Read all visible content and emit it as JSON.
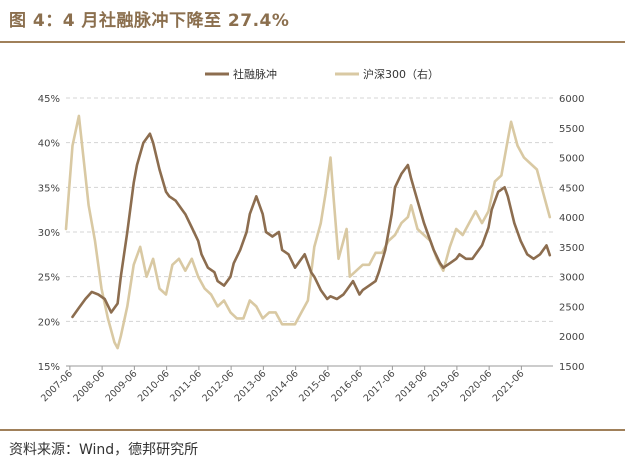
{
  "title": "图 4：4 月社融脉冲下降至 27.4%",
  "source": "资料来源：Wind，德邦研究所",
  "colors": {
    "accent": "#8B6F4E",
    "series1": "#8C6D4F",
    "series2": "#D9C9A3",
    "grid": "#d4d4d4"
  },
  "chart_data": {
    "type": "line",
    "title": "",
    "legend": {
      "placement": "top-center",
      "entries": [
        "社融脉冲",
        "沪深300（右）"
      ]
    },
    "grid": "horizontal dashed",
    "x_tick_labels": [
      "2007-06",
      "2008-06",
      "2009-06",
      "2010-06",
      "2011-06",
      "2012-06",
      "2013-06",
      "2014-06",
      "2015-06",
      "2016-06",
      "2017-06",
      "2018-06",
      "2019-06",
      "2020-06",
      "2021-06"
    ],
    "y_left": {
      "range": [
        15,
        45
      ],
      "ticks": [
        "15%",
        "20%",
        "25%",
        "30%",
        "35%",
        "40%",
        "45%"
      ]
    },
    "y_right": {
      "range": [
        1500,
        6000
      ],
      "ticks": [
        "1500",
        "2000",
        "2500",
        "3000",
        "3500",
        "4000",
        "4500",
        "5000",
        "5500",
        "6000"
      ]
    },
    "series": [
      {
        "name": "社融脉冲",
        "axis": "left",
        "x": [
          2007.5,
          2007.7,
          2007.9,
          2008.1,
          2008.3,
          2008.5,
          2008.7,
          2008.9,
          2009.0,
          2009.2,
          2009.4,
          2009.5,
          2009.7,
          2009.9,
          2010.0,
          2010.2,
          2010.4,
          2010.5,
          2010.7,
          2010.9,
          2011.0,
          2011.2,
          2011.4,
          2011.5,
          2011.7,
          2011.9,
          2012.0,
          2012.2,
          2012.4,
          2012.5,
          2012.7,
          2012.9,
          2013.0,
          2013.2,
          2013.4,
          2013.5,
          2013.7,
          2013.9,
          2014.0,
          2014.2,
          2014.4,
          2014.5,
          2014.7,
          2014.9,
          2015.0,
          2015.2,
          2015.4,
          2015.5,
          2015.7,
          2015.9,
          2016.0,
          2016.2,
          2016.4,
          2016.5,
          2016.7,
          2016.9,
          2017.0,
          2017.2,
          2017.4,
          2017.5,
          2017.7,
          2017.9,
          2018.0,
          2018.2,
          2018.4,
          2018.5,
          2018.7,
          2018.9,
          2019.0,
          2019.2,
          2019.4,
          2019.5,
          2019.7,
          2019.9,
          2020.0,
          2020.2,
          2020.4,
          2020.5,
          2020.7,
          2020.9,
          2021.0,
          2021.2,
          2021.4,
          2021.6,
          2021.8,
          2022.0,
          2022.2,
          2022.3
        ],
        "values": [
          20.5,
          21.5,
          22.5,
          23.3,
          23.0,
          22.5,
          21.0,
          22.0,
          25.0,
          30.0,
          35.5,
          37.5,
          40.0,
          41.0,
          40.0,
          37.0,
          34.5,
          34.0,
          33.5,
          32.5,
          32.0,
          30.5,
          29.0,
          27.5,
          26.0,
          25.5,
          24.5,
          24.0,
          25.0,
          26.5,
          28.0,
          30.0,
          32.0,
          34.0,
          32.0,
          30.0,
          29.5,
          30.0,
          28.0,
          27.5,
          26.0,
          26.5,
          27.5,
          25.5,
          25.0,
          23.5,
          22.5,
          22.8,
          22.5,
          23.0,
          23.5,
          24.5,
          23.0,
          23.5,
          24.0,
          24.5,
          25.5,
          28.0,
          32.0,
          35.0,
          36.5,
          37.5,
          36.0,
          33.5,
          31.0,
          30.0,
          28.0,
          26.5,
          26.0,
          26.5,
          27.0,
          27.5,
          27.0,
          27.0,
          27.5,
          28.5,
          30.5,
          32.5,
          34.5,
          35.0,
          34.0,
          31.0,
          29.0,
          27.5,
          27.0,
          27.5,
          28.5,
          27.4
        ]
      },
      {
        "name": "沪深300（右）",
        "axis": "right",
        "x": [
          2007.3,
          2007.5,
          2007.7,
          2007.9,
          2008.0,
          2008.2,
          2008.4,
          2008.6,
          2008.8,
          2008.9,
          2009.0,
          2009.2,
          2009.4,
          2009.6,
          2009.8,
          2010.0,
          2010.2,
          2010.4,
          2010.6,
          2010.8,
          2011.0,
          2011.2,
          2011.4,
          2011.6,
          2011.8,
          2012.0,
          2012.2,
          2012.4,
          2012.6,
          2012.8,
          2013.0,
          2013.2,
          2013.4,
          2013.6,
          2013.8,
          2014.0,
          2014.2,
          2014.4,
          2014.6,
          2014.8,
          2015.0,
          2015.2,
          2015.35,
          2015.5,
          2015.6,
          2015.75,
          2015.9,
          2016.0,
          2016.1,
          2016.3,
          2016.5,
          2016.7,
          2016.9,
          2017.1,
          2017.3,
          2017.5,
          2017.7,
          2017.9,
          2018.0,
          2018.2,
          2018.4,
          2018.6,
          2018.8,
          2019.0,
          2019.2,
          2019.4,
          2019.6,
          2019.8,
          2020.0,
          2020.2,
          2020.4,
          2020.6,
          2020.8,
          2021.0,
          2021.1,
          2021.3,
          2021.5,
          2021.7,
          2021.9,
          2022.1,
          2022.3
        ],
        "values": [
          3800,
          5200,
          5700,
          4700,
          4200,
          3600,
          2800,
          2300,
          1900,
          1800,
          2000,
          2500,
          3200,
          3500,
          3000,
          3300,
          2800,
          2700,
          3200,
          3300,
          3100,
          3300,
          3000,
          2800,
          2700,
          2500,
          2600,
          2400,
          2300,
          2300,
          2600,
          2500,
          2300,
          2400,
          2400,
          2200,
          2200,
          2200,
          2400,
          2600,
          3500,
          3900,
          4400,
          5000,
          4300,
          3300,
          3600,
          3800,
          3000,
          3100,
          3200,
          3200,
          3400,
          3400,
          3600,
          3700,
          3900,
          4000,
          4200,
          3800,
          3700,
          3600,
          3300,
          3100,
          3500,
          3800,
          3700,
          3900,
          4100,
          3900,
          4100,
          4600,
          4700,
          5300,
          5600,
          5200,
          5000,
          4900,
          4800,
          4400,
          4000
        ]
      }
    ]
  }
}
